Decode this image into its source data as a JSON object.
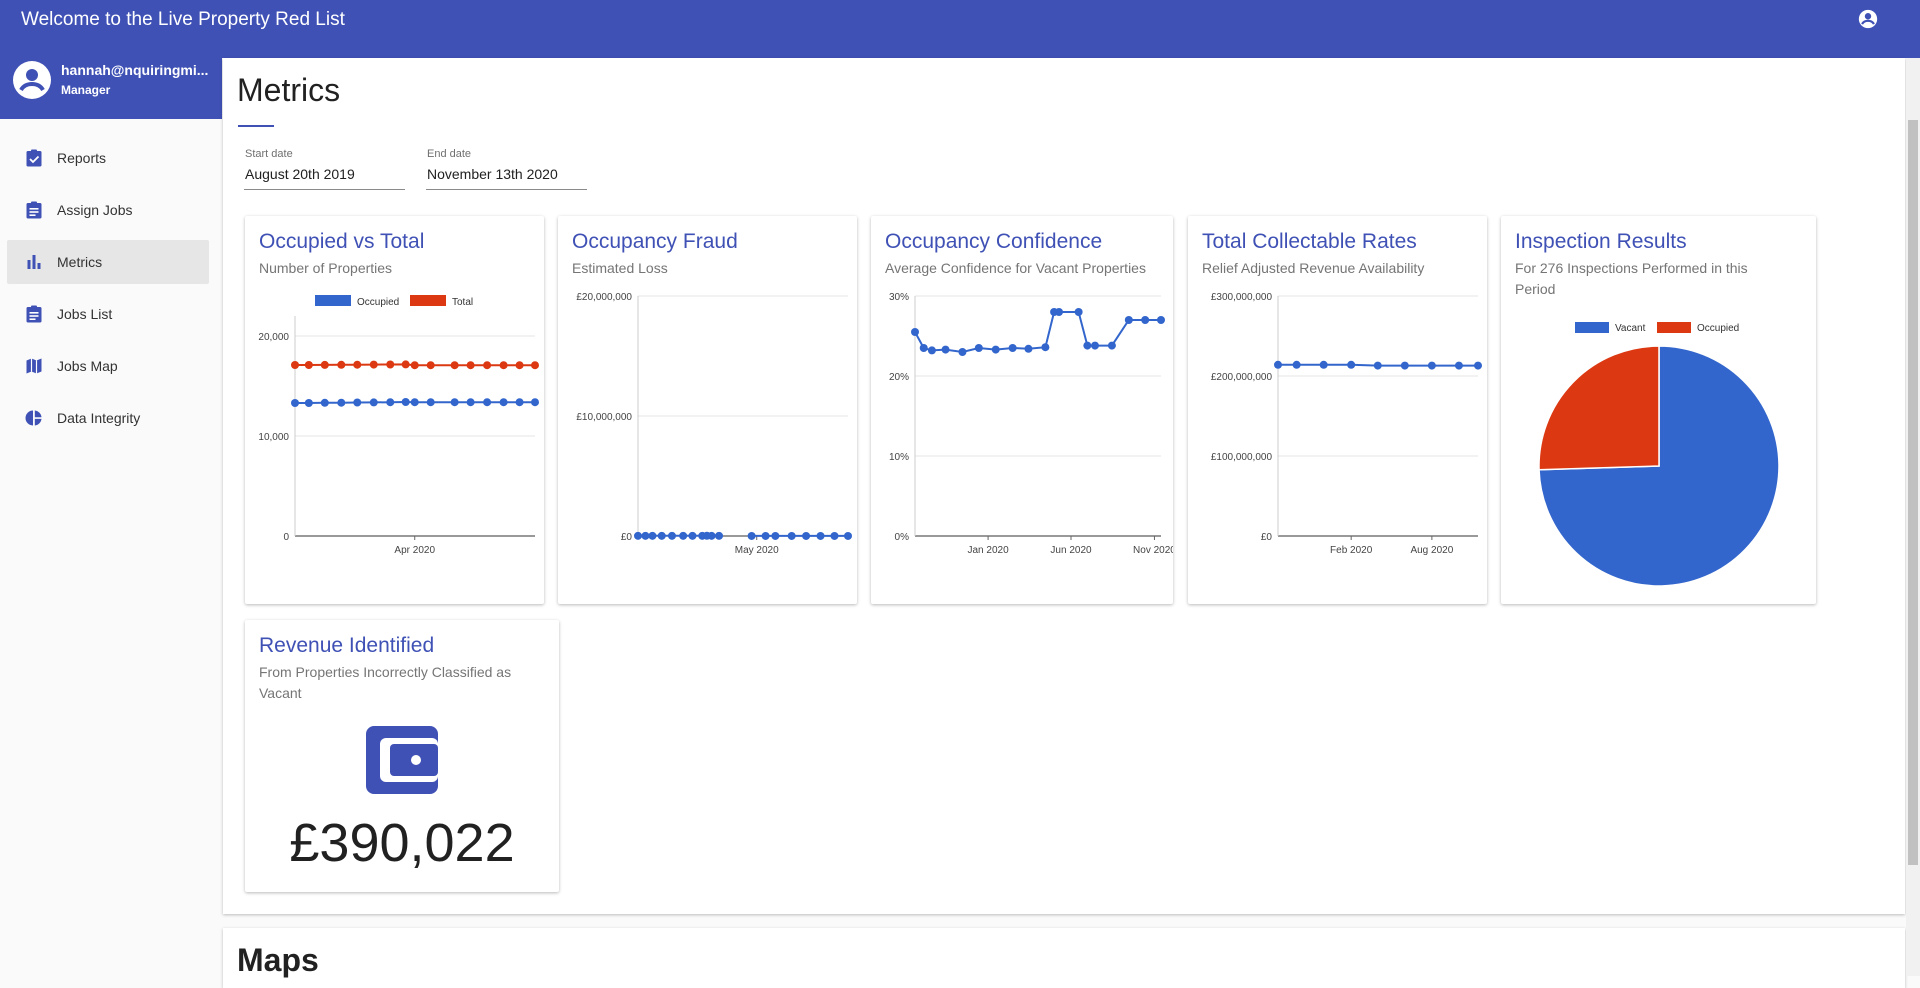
{
  "header": {
    "title": "Welcome to the Live Property Red List",
    "account_icon": "account-circle-icon"
  },
  "user": {
    "email": "hannah@nquiringmi...",
    "role": "Manager"
  },
  "nav": [
    {
      "label": "Reports",
      "icon": "assignment-turned-in-icon"
    },
    {
      "label": "Assign Jobs",
      "icon": "assignment-icon"
    },
    {
      "label": "Metrics",
      "icon": "bar-chart-icon",
      "active": true
    },
    {
      "label": "Jobs List",
      "icon": "assignment-icon"
    },
    {
      "label": "Jobs Map",
      "icon": "map-icon"
    },
    {
      "label": "Data Integrity",
      "icon": "pie-chart-icon"
    }
  ],
  "metrics": {
    "heading": "Metrics",
    "start_date": {
      "label": "Start date",
      "value": "August 20th 2019"
    },
    "end_date": {
      "label": "End date",
      "value": "November 13th 2020"
    }
  },
  "cards": {
    "occupied_vs_total": {
      "title": "Occupied vs Total",
      "subtitle": "Number of Properties"
    },
    "occupancy_fraud": {
      "title": "Occupancy Fraud",
      "subtitle": "Estimated Loss"
    },
    "occupancy_confidence": {
      "title": "Occupancy Confidence",
      "subtitle": "Average Confidence for Vacant Properties"
    },
    "total_collectable": {
      "title": "Total Collectable Rates",
      "subtitle": "Relief Adjusted Revenue Availability"
    },
    "inspection_results": {
      "title": "Inspection Results",
      "subtitle": "For 276 Inspections Performed in this Period"
    },
    "revenue": {
      "title": "Revenue Identified",
      "subtitle": "From Properties Incorrectly Classified as Vacant",
      "value": "£390,022",
      "icon": "wallet-icon"
    }
  },
  "maps": {
    "heading": "Maps"
  },
  "colors": {
    "primary": "#3f51b5",
    "series_blue": "#3366cc",
    "series_red": "#dc3912"
  },
  "chart_data": [
    {
      "type": "line",
      "id": "occupied_vs_total",
      "x": [
        "2019-08-20",
        "2019-09-15",
        "2019-10-15",
        "2019-11-15",
        "2019-12-15",
        "2020-01-15",
        "2020-02-15",
        "2020-03-15",
        "2020-04-01",
        "2020-05-01",
        "2020-06-15",
        "2020-07-15",
        "2020-08-15",
        "2020-09-15",
        "2020-10-15",
        "2020-11-13"
      ],
      "series": [
        {
          "name": "Occupied",
          "color": "#3366cc",
          "values": [
            13300,
            13300,
            13320,
            13330,
            13350,
            13360,
            13380,
            13400,
            13380,
            13380,
            13380,
            13380,
            13380,
            13380,
            13380,
            13380
          ]
        },
        {
          "name": "Total",
          "color": "#dc3912",
          "values": [
            17100,
            17100,
            17110,
            17120,
            17130,
            17140,
            17150,
            17160,
            17080,
            17080,
            17080,
            17080,
            17080,
            17080,
            17080,
            17080
          ]
        }
      ],
      "yticks": [
        "0",
        "10,000",
        "20,000"
      ],
      "ylim": [
        0,
        22000
      ],
      "xticks": [
        {
          "label": "Apr 2020",
          "x": "2020-04-01"
        }
      ],
      "legend": "top"
    },
    {
      "type": "line",
      "id": "occupancy_fraud",
      "x": [
        "2019-08-20",
        "2019-09-05",
        "2019-09-20",
        "2019-10-10",
        "2019-11-01",
        "2019-11-25",
        "2019-12-15",
        "2020-01-05",
        "2020-01-15",
        "2020-01-25",
        "2020-02-10",
        "2020-03-15",
        "2020-04-20",
        "2020-05-20",
        "2020-06-10",
        "2020-07-15",
        "2020-08-15",
        "2020-09-15",
        "2020-10-15",
        "2020-11-13"
      ],
      "series": [
        {
          "name": "",
          "color": "#3366cc",
          "values": [
            13800,
            14200,
            14900,
            15000,
            14900,
            14800,
            14700,
            14700,
            16000,
            14600,
            14300,
            null,
            5200,
            5200,
            4300,
            4300,
            4900,
            4900,
            4900,
            4900
          ]
        }
      ],
      "yticks": [
        "£0",
        "£10,000,000",
        "£20,000,000"
      ],
      "ylim": [
        0,
        20000000
      ],
      "xticks": [
        {
          "label": "May 2020",
          "x": "2020-05-01"
        }
      ]
    },
    {
      "type": "line",
      "id": "occupancy_confidence",
      "x": [
        "2019-08-20",
        "2019-09-05",
        "2019-09-20",
        "2019-10-15",
        "2019-11-15",
        "2019-12-15",
        "2020-01-15",
        "2020-02-15",
        "2020-03-15",
        "2020-04-15",
        "2020-05-01",
        "2020-05-10",
        "2020-06-15",
        "2020-07-01",
        "2020-07-15",
        "2020-08-15",
        "2020-09-15",
        "2020-10-15",
        "2020-11-13"
      ],
      "series": [
        {
          "name": "",
          "color": "#3366cc",
          "values": [
            25.5,
            23.5,
            23.2,
            23.3,
            23.0,
            23.5,
            23.3,
            23.5,
            23.4,
            23.6,
            28.0,
            28.0,
            28.0,
            23.8,
            23.8,
            23.8,
            27.0,
            27.0,
            27.0
          ]
        }
      ],
      "yticks": [
        "0%",
        "10%",
        "20%",
        "30%"
      ],
      "ylim": [
        0,
        30
      ],
      "xticks": [
        {
          "label": "Jan 2020",
          "x": "2020-01-01"
        },
        {
          "label": "Jun 2020",
          "x": "2020-06-01"
        },
        {
          "label": "Nov 2020",
          "x": "2020-11-01"
        }
      ]
    },
    {
      "type": "line",
      "id": "total_collectable",
      "x": [
        "2019-08-20",
        "2019-10-01",
        "2019-12-01",
        "2020-02-01",
        "2020-04-01",
        "2020-06-01",
        "2020-08-01",
        "2020-10-01",
        "2020-11-13"
      ],
      "series": [
        {
          "name": "",
          "color": "#3366cc",
          "values": [
            214000000,
            214000000,
            214000000,
            214000000,
            213000000,
            213000000,
            213000000,
            213000000,
            213000000
          ]
        }
      ],
      "yticks": [
        "£0",
        "£100,000,000",
        "£200,000,000",
        "£300,000,000"
      ],
      "ylim": [
        0,
        300000000
      ],
      "xticks": [
        {
          "label": "Feb 2020",
          "x": "2020-02-01"
        },
        {
          "label": "Aug 2020",
          "x": "2020-08-01"
        }
      ]
    },
    {
      "type": "pie",
      "id": "inspection_results",
      "series": [
        {
          "name": "Vacant",
          "color": "#3366cc",
          "value": 74.5
        },
        {
          "name": "Occupied",
          "color": "#dc3912",
          "value": 25.5
        }
      ],
      "legend": "top"
    }
  ]
}
